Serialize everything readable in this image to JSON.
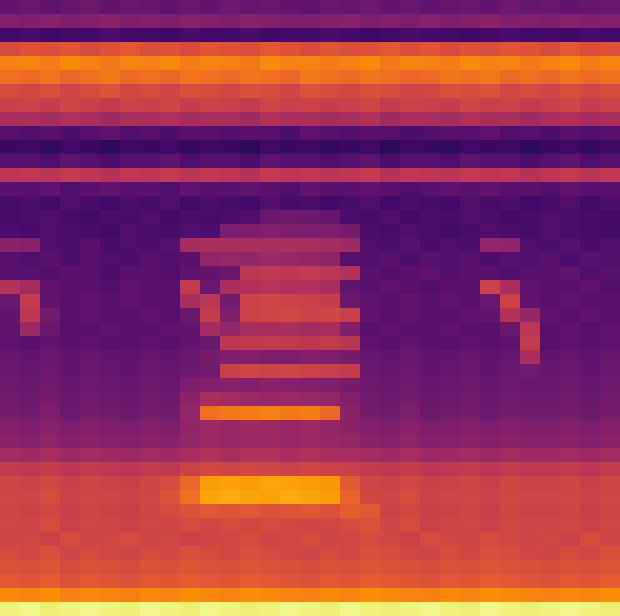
{
  "chart_data": {
    "type": "heatmap",
    "color": "inferno",
    "tick_labels": false,
    "clim": [
      0,
      100
    ],
    "cells": [
      [
        28,
        30,
        27,
        29,
        31,
        28,
        30,
        29,
        27,
        30,
        28,
        31,
        29,
        30,
        28,
        27,
        30,
        29,
        31,
        28,
        30,
        27,
        29,
        30,
        28,
        31,
        29,
        30,
        28,
        29,
        30
      ],
      [
        36,
        35,
        37,
        34,
        36,
        38,
        35,
        36,
        34,
        37,
        36,
        35,
        37,
        36,
        35,
        34,
        36,
        37,
        35,
        36,
        34,
        37,
        35,
        36,
        38,
        35,
        36,
        34,
        37,
        35,
        36
      ],
      [
        20,
        22,
        19,
        21,
        20,
        23,
        21,
        20,
        19,
        22,
        21,
        20,
        22,
        19,
        21,
        20,
        22,
        21,
        19,
        20,
        22,
        21,
        20,
        19,
        21,
        22,
        20,
        21,
        19,
        22,
        20
      ],
      [
        58,
        60,
        59,
        61,
        58,
        60,
        62,
        59,
        60,
        58,
        61,
        60,
        59,
        62,
        60,
        58,
        61,
        59,
        60,
        62,
        59,
        61,
        58,
        60,
        59,
        61,
        60,
        58,
        62,
        59,
        60
      ],
      [
        72,
        73,
        71,
        74,
        72,
        70,
        73,
        72,
        74,
        71,
        73,
        72,
        70,
        74,
        72,
        73,
        71,
        72,
        74,
        70,
        73,
        72,
        71,
        74,
        72,
        73,
        70,
        72,
        74,
        71,
        73
      ],
      [
        68,
        67,
        69,
        66,
        68,
        70,
        67,
        68,
        66,
        69,
        68,
        67,
        69,
        68,
        66,
        70,
        68,
        67,
        69,
        68,
        66,
        67,
        69,
        68,
        70,
        67,
        68,
        66,
        69,
        67,
        68
      ],
      [
        58,
        57,
        59,
        56,
        58,
        60,
        57,
        58,
        56,
        59,
        58,
        57,
        59,
        58,
        56,
        60,
        58,
        57,
        59,
        58,
        56,
        57,
        59,
        58,
        60,
        57,
        58,
        56,
        59,
        57,
        58
      ],
      [
        54,
        55,
        53,
        56,
        54,
        52,
        55,
        54,
        56,
        53,
        55,
        54,
        52,
        56,
        54,
        55,
        53,
        54,
        56,
        52,
        55,
        54,
        53,
        56,
        54,
        55,
        52,
        54,
        56,
        53,
        55
      ],
      [
        45,
        46,
        44,
        47,
        45,
        43,
        46,
        45,
        47,
        44,
        46,
        45,
        43,
        47,
        45,
        46,
        44,
        45,
        47,
        43,
        46,
        45,
        44,
        47,
        45,
        46,
        43,
        45,
        47,
        44,
        46
      ],
      [
        25,
        24,
        26,
        23,
        25,
        27,
        24,
        25,
        23,
        26,
        25,
        24,
        26,
        25,
        23,
        27,
        25,
        24,
        26,
        25,
        23,
        24,
        26,
        25,
        27,
        24,
        25,
        23,
        26,
        24,
        25
      ],
      [
        18,
        19,
        17,
        20,
        18,
        16,
        19,
        18,
        20,
        17,
        19,
        18,
        16,
        20,
        18,
        19,
        17,
        18,
        20,
        16,
        19,
        18,
        17,
        20,
        18,
        19,
        16,
        18,
        20,
        17,
        19
      ],
      [
        25,
        26,
        24,
        27,
        25,
        23,
        26,
        25,
        27,
        24,
        26,
        25,
        23,
        27,
        25,
        26,
        24,
        25,
        27,
        23,
        26,
        25,
        24,
        27,
        25,
        26,
        23,
        25,
        27,
        24,
        26
      ],
      [
        50,
        51,
        49,
        52,
        50,
        48,
        51,
        50,
        52,
        49,
        51,
        50,
        48,
        52,
        50,
        51,
        49,
        50,
        52,
        48,
        51,
        50,
        49,
        52,
        50,
        51,
        48,
        50,
        52,
        49,
        51
      ],
      [
        26,
        25,
        27,
        24,
        26,
        28,
        25,
        26,
        24,
        27,
        26,
        25,
        27,
        26,
        24,
        28,
        26,
        25,
        27,
        26,
        24,
        25,
        27,
        26,
        28,
        25,
        26,
        24,
        27,
        25,
        26
      ],
      [
        22,
        23,
        21,
        24,
        22,
        20,
        23,
        22,
        24,
        21,
        23,
        22,
        20,
        24,
        22,
        23,
        21,
        22,
        24,
        20,
        23,
        22,
        21,
        24,
        22,
        23,
        20,
        22,
        24,
        21,
        23
      ],
      [
        22,
        23,
        24,
        22,
        21,
        23,
        22,
        24,
        21,
        23,
        22,
        23,
        24,
        30,
        31,
        30,
        29,
        23,
        22,
        24,
        21,
        23,
        22,
        24,
        23,
        21,
        22,
        24,
        23,
        22,
        21
      ],
      [
        23,
        22,
        24,
        23,
        22,
        21,
        24,
        23,
        22,
        24,
        23,
        34,
        35,
        36,
        35,
        34,
        35,
        33,
        23,
        22,
        24,
        23,
        21,
        22,
        24,
        23,
        22,
        24,
        23,
        22,
        21
      ],
      [
        38,
        37,
        24,
        23,
        25,
        22,
        24,
        23,
        25,
        44,
        46,
        45,
        46,
        45,
        46,
        45,
        44,
        43,
        24,
        23,
        25,
        22,
        24,
        23,
        40,
        39,
        24,
        23,
        25,
        22,
        24
      ],
      [
        25,
        24,
        26,
        23,
        25,
        24,
        23,
        25,
        24,
        26,
        40,
        41,
        40,
        42,
        41,
        40,
        39,
        25,
        24,
        26,
        23,
        25,
        24,
        26,
        23,
        25,
        24,
        26,
        23,
        25,
        24
      ],
      [
        26,
        25,
        24,
        26,
        25,
        23,
        25,
        26,
        24,
        27,
        28,
        30,
        50,
        51,
        50,
        52,
        50,
        48,
        26,
        24,
        25,
        27,
        24,
        26,
        25,
        24,
        26,
        25,
        27,
        24,
        26
      ],
      [
        48,
        44,
        27,
        25,
        26,
        24,
        27,
        25,
        26,
        52,
        30,
        46,
        48,
        49,
        48,
        47,
        46,
        28,
        25,
        27,
        26,
        24,
        26,
        25,
        55,
        45,
        27,
        26,
        25,
        27,
        24
      ],
      [
        30,
        52,
        28,
        26,
        27,
        25,
        27,
        26,
        25,
        45,
        50,
        32,
        55,
        56,
        55,
        54,
        53,
        30,
        27,
        26,
        28,
        25,
        27,
        26,
        30,
        55,
        28,
        26,
        27,
        25,
        26
      ],
      [
        28,
        50,
        32,
        26,
        27,
        25,
        26,
        27,
        25,
        30,
        52,
        35,
        55,
        56,
        57,
        55,
        56,
        54,
        28,
        26,
        27,
        25,
        26,
        27,
        28,
        48,
        40,
        27,
        26,
        28,
        25
      ],
      [
        27,
        42,
        30,
        26,
        25,
        27,
        26,
        25,
        27,
        28,
        44,
        40,
        45,
        46,
        45,
        44,
        45,
        35,
        26,
        27,
        25,
        26,
        27,
        25,
        26,
        30,
        50,
        26,
        27,
        25,
        27
      ],
      [
        27,
        26,
        28,
        25,
        27,
        26,
        25,
        27,
        26,
        28,
        30,
        50,
        51,
        52,
        51,
        50,
        52,
        49,
        27,
        26,
        28,
        25,
        26,
        27,
        25,
        27,
        52,
        26,
        27,
        25,
        27
      ],
      [
        29,
        28,
        30,
        27,
        29,
        28,
        27,
        29,
        28,
        30,
        33,
        35,
        36,
        35,
        34,
        36,
        35,
        33,
        29,
        28,
        30,
        27,
        28,
        29,
        27,
        29,
        45,
        28,
        29,
        27,
        29
      ],
      [
        30,
        29,
        31,
        28,
        30,
        29,
        28,
        30,
        29,
        31,
        32,
        54,
        56,
        55,
        56,
        55,
        54,
        52,
        30,
        29,
        31,
        28,
        29,
        30,
        28,
        30,
        32,
        29,
        30,
        28,
        30
      ],
      [
        31,
        30,
        32,
        29,
        31,
        30,
        29,
        31,
        30,
        34,
        36,
        37,
        36,
        38,
        37,
        36,
        35,
        33,
        31,
        30,
        32,
        29,
        30,
        31,
        29,
        31,
        30,
        30,
        31,
        29,
        31
      ],
      [
        32,
        31,
        33,
        30,
        32,
        31,
        30,
        32,
        31,
        38,
        46,
        44,
        42,
        41,
        42,
        41,
        40,
        36,
        32,
        31,
        33,
        30,
        31,
        32,
        30,
        32,
        31,
        31,
        32,
        30,
        32
      ],
      [
        33,
        32,
        34,
        31,
        33,
        32,
        31,
        33,
        32,
        40,
        68,
        70,
        71,
        72,
        70,
        71,
        66,
        38,
        33,
        32,
        34,
        31,
        32,
        33,
        31,
        33,
        32,
        32,
        33,
        31,
        33
      ],
      [
        36,
        35,
        37,
        34,
        36,
        35,
        34,
        36,
        35,
        39,
        42,
        41,
        43,
        42,
        41,
        42,
        40,
        38,
        36,
        35,
        37,
        34,
        35,
        36,
        34,
        36,
        35,
        35,
        36,
        34,
        36
      ],
      [
        38,
        37,
        39,
        36,
        38,
        37,
        36,
        38,
        37,
        40,
        42,
        41,
        42,
        43,
        41,
        42,
        41,
        40,
        38,
        37,
        39,
        36,
        37,
        38,
        36,
        38,
        37,
        37,
        38,
        36,
        38
      ],
      [
        44,
        43,
        45,
        42,
        44,
        43,
        42,
        44,
        43,
        46,
        47,
        46,
        47,
        48,
        46,
        47,
        46,
        45,
        44,
        43,
        45,
        42,
        43,
        44,
        42,
        44,
        43,
        43,
        44,
        42,
        44
      ],
      [
        52,
        51,
        53,
        50,
        52,
        51,
        50,
        52,
        51,
        55,
        57,
        56,
        57,
        56,
        55,
        56,
        55,
        54,
        52,
        51,
        53,
        50,
        51,
        52,
        50,
        52,
        51,
        51,
        52,
        50,
        52
      ],
      [
        56,
        55,
        57,
        54,
        56,
        55,
        54,
        56,
        58,
        66,
        78,
        79,
        78,
        80,
        79,
        78,
        77,
        62,
        56,
        55,
        57,
        54,
        55,
        56,
        54,
        56,
        55,
        55,
        56,
        54,
        56
      ],
      [
        57,
        56,
        58,
        55,
        57,
        56,
        55,
        57,
        60,
        68,
        80,
        81,
        80,
        79,
        81,
        80,
        78,
        65,
        57,
        56,
        58,
        55,
        56,
        57,
        55,
        57,
        56,
        56,
        57,
        55,
        57
      ],
      [
        56,
        55,
        57,
        54,
        56,
        55,
        54,
        56,
        58,
        60,
        62,
        61,
        62,
        60,
        61,
        62,
        60,
        64,
        62,
        55,
        57,
        54,
        55,
        56,
        54,
        56,
        55,
        55,
        56,
        54,
        56
      ],
      [
        57,
        56,
        58,
        55,
        57,
        56,
        55,
        57,
        56,
        58,
        57,
        58,
        57,
        58,
        57,
        56,
        57,
        58,
        60,
        56,
        58,
        55,
        56,
        57,
        55,
        57,
        56,
        56,
        57,
        55,
        57
      ],
      [
        56,
        57,
        55,
        58,
        56,
        57,
        58,
        56,
        57,
        55,
        56,
        57,
        58,
        56,
        57,
        58,
        56,
        57,
        58,
        57,
        55,
        58,
        57,
        56,
        58,
        57,
        56,
        57,
        55,
        58,
        56
      ],
      [
        58,
        57,
        59,
        56,
        58,
        57,
        56,
        58,
        57,
        59,
        58,
        57,
        59,
        58,
        57,
        56,
        58,
        57,
        59,
        58,
        57,
        56,
        58,
        57,
        59,
        58,
        57,
        56,
        58,
        57,
        59
      ],
      [
        60,
        59,
        61,
        58,
        60,
        59,
        58,
        60,
        59,
        61,
        60,
        59,
        61,
        60,
        59,
        58,
        60,
        59,
        61,
        60,
        59,
        58,
        60,
        59,
        61,
        60,
        59,
        58,
        60,
        59,
        61
      ],
      [
        62,
        61,
        63,
        60,
        62,
        61,
        60,
        62,
        61,
        63,
        62,
        61,
        63,
        62,
        61,
        60,
        62,
        61,
        63,
        62,
        61,
        60,
        62,
        61,
        63,
        62,
        61,
        60,
        62,
        61,
        63
      ],
      [
        74,
        73,
        75,
        72,
        74,
        73,
        72,
        74,
        73,
        75,
        74,
        73,
        75,
        74,
        73,
        72,
        74,
        73,
        75,
        74,
        73,
        72,
        74,
        73,
        75,
        74,
        73,
        72,
        74,
        73,
        75
      ],
      [
        96,
        97,
        95,
        96,
        97,
        96,
        95,
        97,
        96,
        95,
        97,
        96,
        95,
        96,
        97,
        96,
        95,
        97,
        96,
        95,
        96,
        97,
        96,
        95,
        97,
        96,
        95,
        96,
        97,
        96,
        95
      ]
    ]
  }
}
